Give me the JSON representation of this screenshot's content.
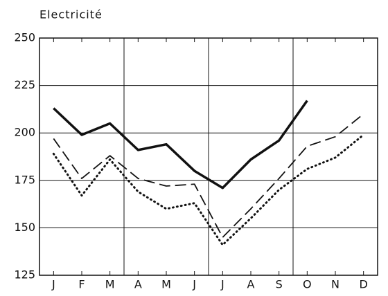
{
  "chart_data": {
    "type": "line",
    "title": "Electricité",
    "categories": [
      "J",
      "F",
      "M",
      "A",
      "M",
      "J",
      "J",
      "A",
      "S",
      "O",
      "N",
      "D"
    ],
    "series": [
      {
        "color": "#111111",
        "style": "solid",
        "values": [
          213,
          199,
          205,
          191,
          194,
          180,
          171,
          186,
          196,
          217,
          null,
          null
        ]
      },
      {
        "color": "#111111",
        "style": "dashed",
        "values": [
          197,
          176,
          188,
          176,
          172,
          173,
          145,
          160,
          176,
          193,
          198,
          210
        ]
      },
      {
        "color": "#111111",
        "style": "dotted",
        "values": [
          189,
          167,
          186,
          169,
          160,
          163,
          141,
          155,
          170,
          181,
          187,
          199
        ]
      }
    ],
    "ylim": [
      125,
      250
    ],
    "yticks": [
      125,
      150,
      175,
      200,
      225,
      250
    ],
    "grid": true
  }
}
